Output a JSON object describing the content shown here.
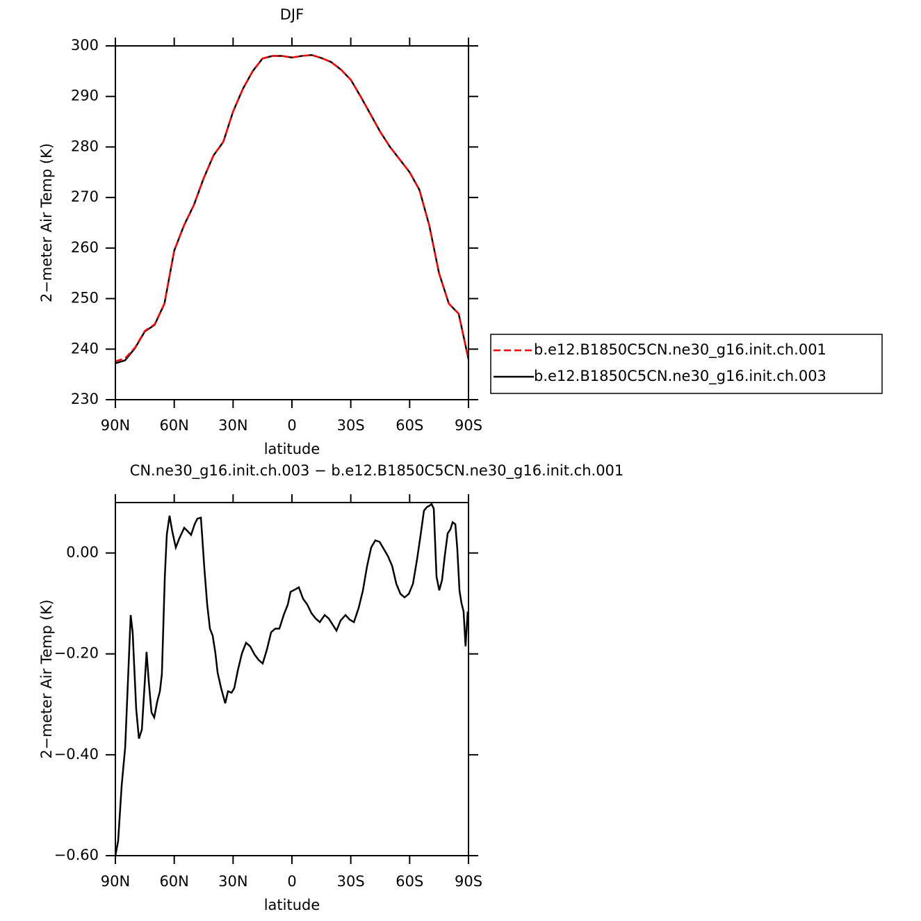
{
  "chart_data": [
    {
      "type": "line",
      "title": "DJF",
      "xlabel": "latitude",
      "ylabel": "2−meter Air Temp (K)",
      "xlim": [
        90,
        -90
      ],
      "xticks": [
        {
          "value": 90,
          "label": "90N"
        },
        {
          "value": 60,
          "label": "60N"
        },
        {
          "value": 30,
          "label": "30N"
        },
        0,
        {
          "value": -30,
          "label": "30S"
        },
        {
          "value": -60,
          "label": "60S"
        },
        {
          "value": -90,
          "label": "90S"
        }
      ],
      "ylim": [
        230,
        300
      ],
      "yticks": [
        230,
        240,
        250,
        260,
        270,
        280,
        290,
        300
      ],
      "legend": "outside right",
      "x": [
        90,
        85,
        80,
        75,
        70,
        65,
        60,
        55,
        50,
        45,
        40,
        35,
        30,
        25,
        20,
        15,
        10,
        5,
        0,
        -5,
        -10,
        -15,
        -20,
        -25,
        -30,
        -35,
        -40,
        -45,
        -50,
        -55,
        -60,
        -65,
        -70,
        -75,
        -80,
        -85,
        -90
      ],
      "series": [
        {
          "name": "b.e12.B1850C5CN.ne30_g16.init.ch.001",
          "color": "#ff0000",
          "dash": true,
          "values": [
            237.6,
            238.2,
            240.3,
            243.6,
            244.9,
            249,
            259.5,
            264.5,
            268.5,
            273.8,
            278.3,
            281,
            287,
            291.5,
            295,
            297.5,
            298,
            298,
            297.7,
            298,
            298.2,
            297.6,
            296.8,
            295.3,
            293.3,
            290,
            286.5,
            283,
            280,
            277.5,
            275,
            271.5,
            264.5,
            255,
            249,
            247,
            238
          ]
        },
        {
          "name": "b.e12.B1850C5CN.ne30_g16.init.ch.003",
          "color": "#000000",
          "dash": false,
          "values": [
            237.2,
            237.8,
            240.2,
            243.5,
            244.8,
            249,
            259.5,
            264.5,
            268.5,
            273.8,
            278.3,
            281,
            287,
            291.5,
            295,
            297.5,
            298,
            298,
            297.7,
            298,
            298.2,
            297.6,
            296.8,
            295.3,
            293.3,
            290,
            286.5,
            283,
            280,
            277.5,
            275,
            271.5,
            264.5,
            255,
            249,
            247,
            238
          ]
        }
      ]
    },
    {
      "type": "line",
      "title": "CN.ne30_g16.init.ch.003 − b.e12.B1850C5CN.ne30_g16.init.ch.001",
      "xlabel": "latitude",
      "ylabel": "2−meter Air Temp (K)",
      "xlim": [
        90,
        -90
      ],
      "xticks": [
        {
          "value": 90,
          "label": "90N"
        },
        {
          "value": 60,
          "label": "60N"
        },
        {
          "value": 30,
          "label": "30N"
        },
        0,
        {
          "value": -30,
          "label": "30S"
        },
        {
          "value": -60,
          "label": "60S"
        },
        {
          "value": -90,
          "label": "90S"
        }
      ],
      "ylim": [
        -0.6,
        0.1
      ],
      "yticks": [
        {
          "value": -0.6,
          "label": "−0.60"
        },
        {
          "value": -0.4,
          "label": "−0.40"
        },
        {
          "value": -0.2,
          "label": "−0.20"
        },
        {
          "value": 0,
          "label": "0.00"
        }
      ],
      "x": [
        90,
        88.6,
        86.8,
        85,
        83.3,
        82.2,
        81.2,
        79.4,
        78,
        76.5,
        75.1,
        74.1,
        73,
        71.6,
        70.2,
        68.7,
        67.3,
        66.3,
        64.8,
        63.8,
        62.4,
        61,
        59.2,
        57.4,
        54.9,
        53.1,
        51.4,
        49.6,
        48.2,
        46.4,
        44.6,
        43.2,
        41.8,
        40.4,
        39,
        37.9,
        36.1,
        34,
        32.6,
        30.8,
        29.4,
        27.6,
        25.5,
        23.4,
        21.3,
        19.1,
        17,
        14.9,
        12.8,
        10.6,
        8.5,
        6.4,
        4.2,
        2.1,
        0.7,
        -1.8,
        -3.5,
        -5.7,
        -7.8,
        -9.9,
        -12.1,
        -14.2,
        -16.7,
        -18.8,
        -20.9,
        -22.7,
        -24.8,
        -27.3,
        -29.4,
        -31.6,
        -34,
        -36.2,
        -38.3,
        -40.4,
        -42.5,
        -44.7,
        -46.8,
        -48.9,
        -51.1,
        -53.2,
        -55.3,
        -57.4,
        -59.6,
        -61.7,
        -63.8,
        -65.6,
        -67.3,
        -68.8,
        -70.2,
        -71.2,
        -72.3,
        -73.7,
        -75.1,
        -76.5,
        -77.9,
        -79.4,
        -80.8,
        -81.9,
        -83.3,
        -84.3,
        -85.4,
        -86.4,
        -87.5,
        -88.5,
        -89.6
      ],
      "series": [
        {
          "color": "#000000",
          "dash": false,
          "values": [
            -0.6,
            -0.571,
            -0.461,
            -0.385,
            -0.226,
            -0.123,
            -0.157,
            -0.309,
            -0.368,
            -0.35,
            -0.261,
            -0.196,
            -0.254,
            -0.316,
            -0.326,
            -0.295,
            -0.274,
            -0.24,
            -0.047,
            0.036,
            0.074,
            0.043,
            0.011,
            0.029,
            0.05,
            0.043,
            0.036,
            0.057,
            0.068,
            0.07,
            -0.033,
            -0.102,
            -0.15,
            -0.164,
            -0.199,
            -0.237,
            -0.268,
            -0.298,
            -0.274,
            -0.277,
            -0.268,
            -0.233,
            -0.199,
            -0.178,
            -0.185,
            -0.201,
            -0.212,
            -0.219,
            -0.192,
            -0.157,
            -0.15,
            -0.15,
            -0.123,
            -0.102,
            -0.077,
            -0.072,
            -0.068,
            -0.091,
            -0.102,
            -0.119,
            -0.13,
            -0.137,
            -0.123,
            -0.13,
            -0.143,
            -0.154,
            -0.134,
            -0.123,
            -0.132,
            -0.137,
            -0.109,
            -0.074,
            -0.026,
            0.011,
            0.025,
            0.022,
            0.008,
            -0.006,
            -0.026,
            -0.061,
            -0.081,
            -0.088,
            -0.081,
            -0.061,
            -0.012,
            0.036,
            0.084,
            0.091,
            0.094,
            0.097,
            0.088,
            -0.047,
            -0.074,
            -0.054,
            -0.006,
            0.039,
            0.047,
            0.061,
            0.057,
            0.008,
            -0.074,
            -0.099,
            -0.116,
            -0.185,
            -0.116
          ]
        }
      ]
    }
  ]
}
